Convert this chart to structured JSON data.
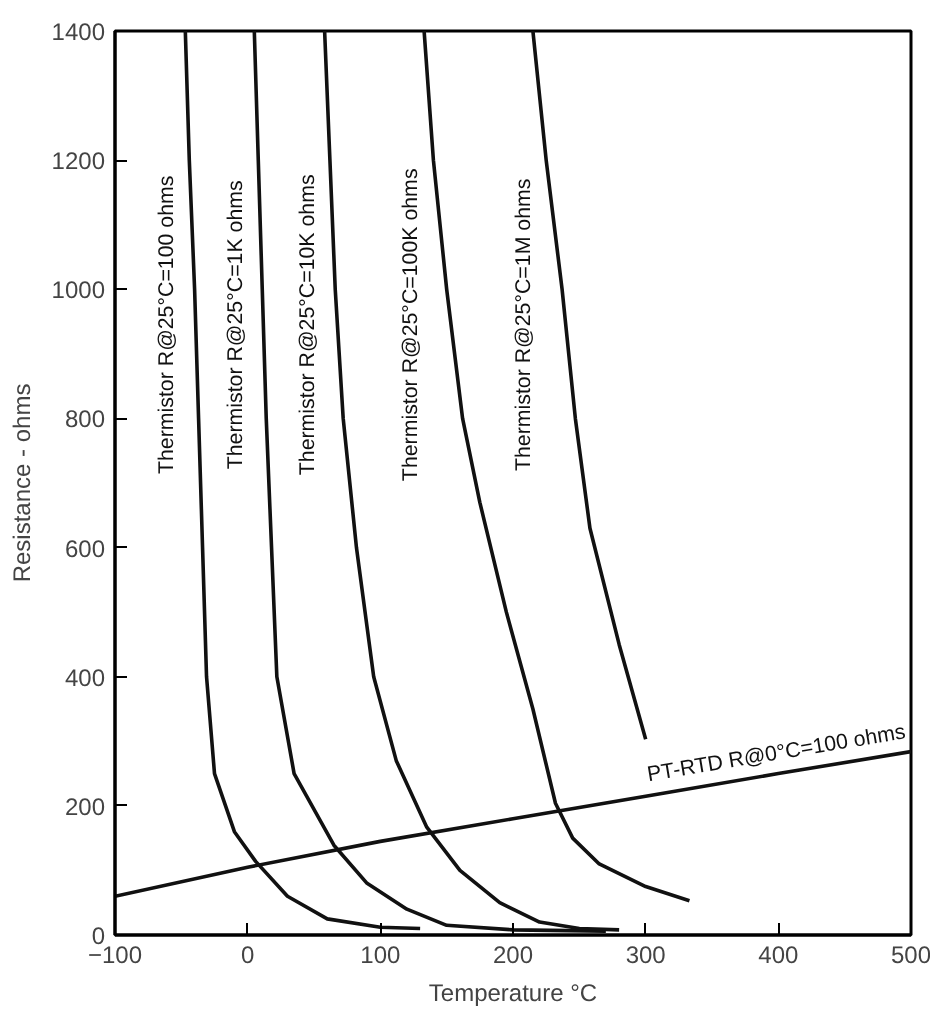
{
  "chart_data": {
    "type": "line",
    "xlabel": "Temperature °C",
    "ylabel": "Resistance - ohms",
    "xlim": [
      -100,
      500
    ],
    "ylim": [
      0,
      1400
    ],
    "xticks": [
      -100,
      0,
      100,
      200,
      300,
      400,
      500
    ],
    "yticks": [
      0,
      200,
      400,
      600,
      800,
      1000,
      1200,
      1400
    ],
    "grid": false,
    "marker": "none",
    "line_style": "solid",
    "series": [
      {
        "name": "Thermistor R@25°C=100 ohms",
        "color": "#111111",
        "x": [
          -47,
          -44,
          -40,
          -37,
          -34,
          -31,
          -25,
          -10,
          6,
          30,
          60,
          100,
          130
        ],
        "values": [
          1400,
          1200,
          1000,
          800,
          600,
          400,
          250,
          160,
          114,
          60,
          25,
          12,
          10
        ]
      },
      {
        "name": "Thermistor R@25°C=1K ohms",
        "color": "#111111",
        "x": [
          5,
          8,
          11,
          14,
          18,
          22,
          35,
          65,
          90,
          120,
          150,
          200,
          270
        ],
        "values": [
          1400,
          1200,
          1000,
          800,
          600,
          400,
          250,
          139,
          80,
          40,
          15,
          8,
          6
        ]
      },
      {
        "name": "Thermistor R@25°C=10K ohms",
        "color": "#111111",
        "x": [
          58,
          62,
          66,
          72,
          82,
          95,
          112,
          135,
          160,
          190,
          220,
          250,
          280
        ],
        "values": [
          1400,
          1200,
          1000,
          800,
          600,
          400,
          270,
          167,
          100,
          50,
          20,
          10,
          8
        ]
      },
      {
        "name": "Thermistor R@25°C=100K ohms",
        "color": "#111111",
        "x": [
          133,
          140,
          150,
          162,
          175,
          195,
          215,
          232,
          245,
          265,
          300,
          333
        ],
        "values": [
          1400,
          1200,
          1000,
          800,
          670,
          500,
          350,
          204,
          150,
          110,
          75,
          53
        ]
      },
      {
        "name": "Thermistor R@25°C=1M ohms",
        "color": "#111111",
        "x": [
          215,
          225,
          237,
          247,
          258,
          280,
          300
        ],
        "values": [
          1400,
          1200,
          1000,
          800,
          630,
          450,
          303
        ]
      },
      {
        "name": "PT-RTD R@0°C=100 ohms",
        "color": "#111111",
        "x": [
          -100,
          0,
          100,
          200,
          300,
          400,
          500
        ],
        "values": [
          60,
          105,
          145,
          180,
          215,
          250,
          284
        ]
      }
    ]
  }
}
